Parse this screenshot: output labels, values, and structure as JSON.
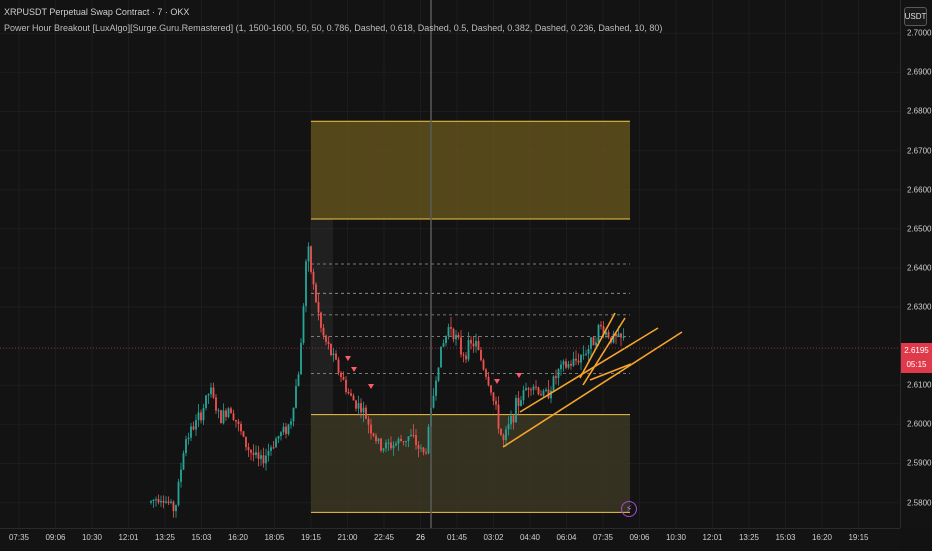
{
  "legend": {
    "symbol_line": "XRPUSDT Perpetual Swap Contract · 7 · OKX",
    "indicator_line": "Power Hour Breakout [LuxAlgo][Surge.Guru.Remastered] (1, 1500-1600, 50, 50, 0.786, Dashed, 0.618, Dashed, 0.5, Dashed, 0.382, Dashed, 0.236, Dashed, 10, 80)"
  },
  "currency_button": "USDT",
  "price_axis": {
    "ticks": [
      "2.7000",
      "2.6900",
      "2.6800",
      "2.6700",
      "2.6600",
      "2.6500",
      "2.6400",
      "2.6300",
      "2.6100",
      "2.6000",
      "2.5900",
      "2.5800"
    ]
  },
  "current_price": {
    "value": "2.6195",
    "countdown": "05:15"
  },
  "time_axis": {
    "ticks": [
      "07:35",
      "09:06",
      "10:30",
      "12:01",
      "13:25",
      "15:03",
      "16:20",
      "18:05",
      "19:15",
      "21:00",
      "22:45",
      "26",
      "01:45",
      "03:02",
      "04:40",
      "06:04",
      "07:35",
      "09:06",
      "10:30",
      "12:01",
      "13:25",
      "15:03",
      "16:20",
      "19:15"
    ]
  },
  "colors": {
    "up": "#26a69a",
    "down": "#ef5350",
    "zone_top": "#6b5a1e",
    "zone_bottom": "#3d3a26",
    "zone_border": "#f5c542",
    "trendline": "#f7a52b",
    "price_tag": "#e03a4a"
  },
  "chart_data": {
    "type": "candlestick",
    "ylim": [
      2.5735,
      2.7085
    ],
    "xlim": [
      0,
      900
    ],
    "power_hour_high_zone": [
      2.6525,
      2.6775
    ],
    "power_hour_low_zone": [
      2.5775,
      2.6025
    ],
    "fib_levels": [
      2.641,
      2.6335,
      2.628,
      2.6225,
      2.613
    ],
    "current_price": 2.6195
  },
  "icons": {
    "bolt": "lightning-icon"
  }
}
